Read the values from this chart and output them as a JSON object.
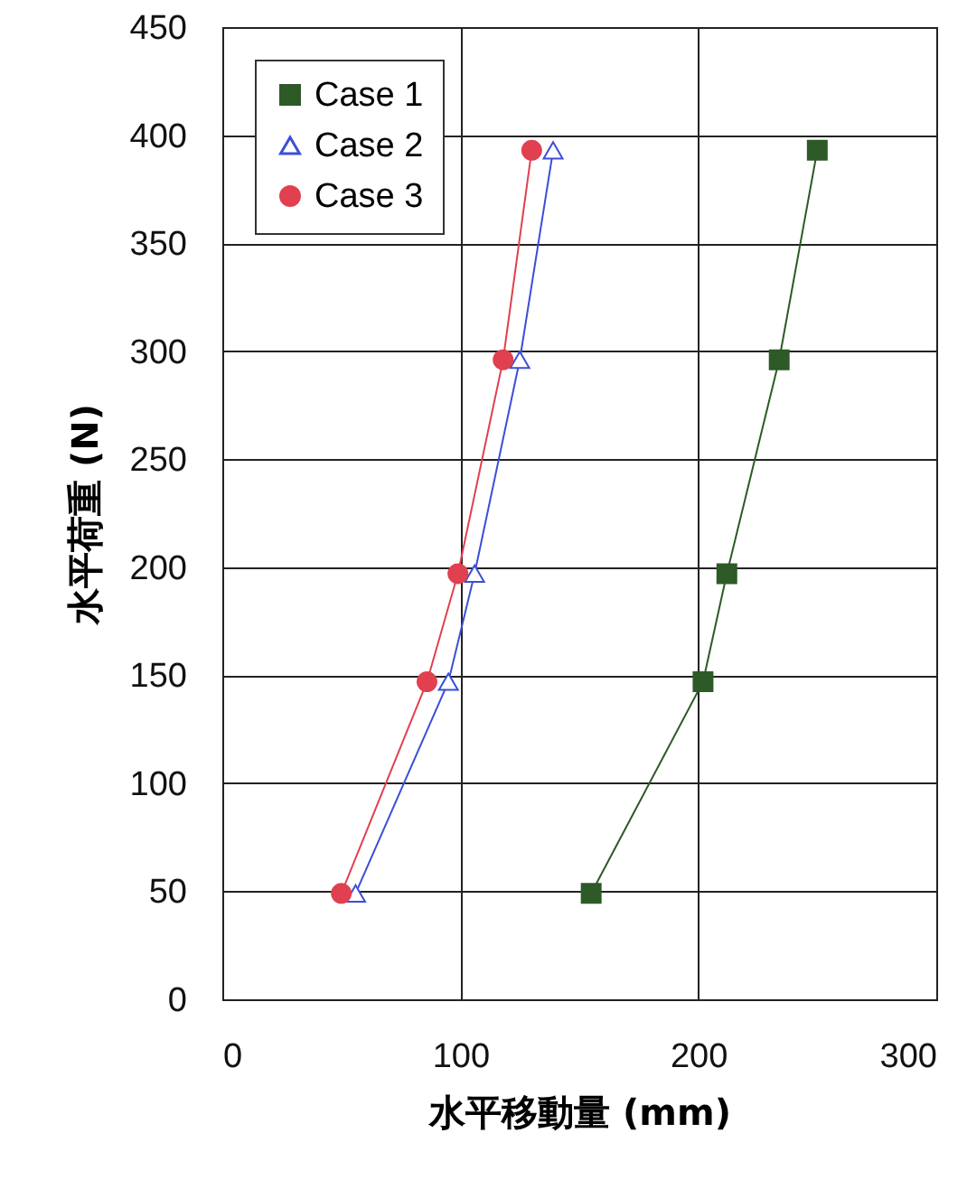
{
  "chart_data": {
    "type": "line",
    "xlabel": "水平移動量 (mm)",
    "ylabel": "水平荷重 (N)",
    "xlim": [
      0,
      300
    ],
    "xticks": [
      0,
      100,
      200,
      300
    ],
    "ylim": [
      0,
      450
    ],
    "yticks": [
      0,
      50,
      100,
      150,
      200,
      250,
      300,
      350,
      400,
      450
    ],
    "grid": true,
    "legend": "top left",
    "series": [
      {
        "name": "Case 1",
        "color": "#2d5a27",
        "marker": "square",
        "x": [
          155,
          202,
          212,
          234,
          250
        ],
        "values": [
          49,
          147,
          197,
          296,
          393
        ]
      },
      {
        "name": "Case 2",
        "color": "#3a4fd8",
        "marker": "triangle",
        "x": [
          56,
          95,
          106,
          125,
          139
        ],
        "values": [
          49,
          147,
          197,
          296,
          393
        ]
      },
      {
        "name": "Case 3",
        "color": "#e04050",
        "marker": "circle",
        "x": [
          50,
          86,
          99,
          118,
          130
        ],
        "values": [
          49,
          147,
          197,
          296,
          393
        ]
      }
    ]
  }
}
